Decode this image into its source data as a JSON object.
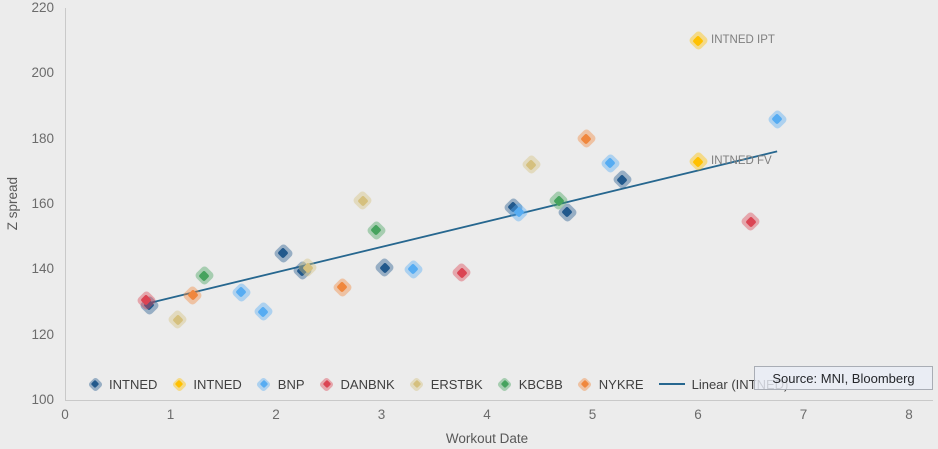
{
  "chart_data": {
    "type": "scatter",
    "title": "",
    "xlabel": "Workout Date",
    "ylabel": "Z spread",
    "xlim": [
      0,
      8
    ],
    "ylim": [
      100,
      220
    ],
    "x_ticks": [
      0,
      1,
      2,
      3,
      4,
      5,
      6,
      7,
      8
    ],
    "y_ticks": [
      100,
      120,
      140,
      160,
      180,
      200,
      220
    ],
    "grid": "off",
    "legend_position": "bottom",
    "series": [
      {
        "name": "INTNED",
        "color": "#22598c",
        "points": [
          [
            0.8,
            129
          ],
          [
            2.07,
            145
          ],
          [
            2.25,
            139.5
          ],
          [
            3.03,
            140.5
          ],
          [
            4.25,
            159
          ],
          [
            4.76,
            157.5
          ],
          [
            5.28,
            167.5
          ]
        ]
      },
      {
        "name": "INTNED",
        "color": "#ffc000",
        "points": [
          [
            6.0,
            210
          ],
          [
            6.0,
            173
          ]
        ]
      },
      {
        "name": "BNP",
        "color": "#56acf2",
        "points": [
          [
            1.67,
            133
          ],
          [
            1.88,
            127
          ],
          [
            3.3,
            140
          ],
          [
            4.3,
            157.5
          ],
          [
            5.17,
            172.5
          ],
          [
            6.75,
            186
          ]
        ]
      },
      {
        "name": "DANBNK",
        "color": "#db4453",
        "points": [
          [
            0.77,
            130.5
          ],
          [
            3.76,
            139
          ],
          [
            6.5,
            154.5
          ]
        ]
      },
      {
        "name": "ERSTBK",
        "color": "#d5c07e",
        "points": [
          [
            1.07,
            124.5
          ],
          [
            2.3,
            140.5
          ],
          [
            2.82,
            161
          ],
          [
            4.42,
            172
          ]
        ]
      },
      {
        "name": "KBCBB",
        "color": "#46a35e",
        "points": [
          [
            1.32,
            138
          ],
          [
            2.95,
            152
          ],
          [
            4.68,
            161
          ]
        ]
      },
      {
        "name": "NYKRE",
        "color": "#f0873d",
        "points": [
          [
            1.21,
            132
          ],
          [
            2.63,
            134.5
          ],
          [
            4.94,
            180
          ]
        ]
      }
    ],
    "trendline": {
      "label": "Linear (INTNED)",
      "color": "#27678f",
      "x1": 0.8,
      "y1": 129.7,
      "x2": 6.75,
      "y2": 176.1
    },
    "annotations": [
      {
        "text": "INTNED IPT",
        "x": 6.0,
        "y": 210
      },
      {
        "text": "INTNED FV",
        "x": 6.0,
        "y": 173
      }
    ]
  },
  "source_box": {
    "text": "Source: MNI, Bloomberg"
  }
}
